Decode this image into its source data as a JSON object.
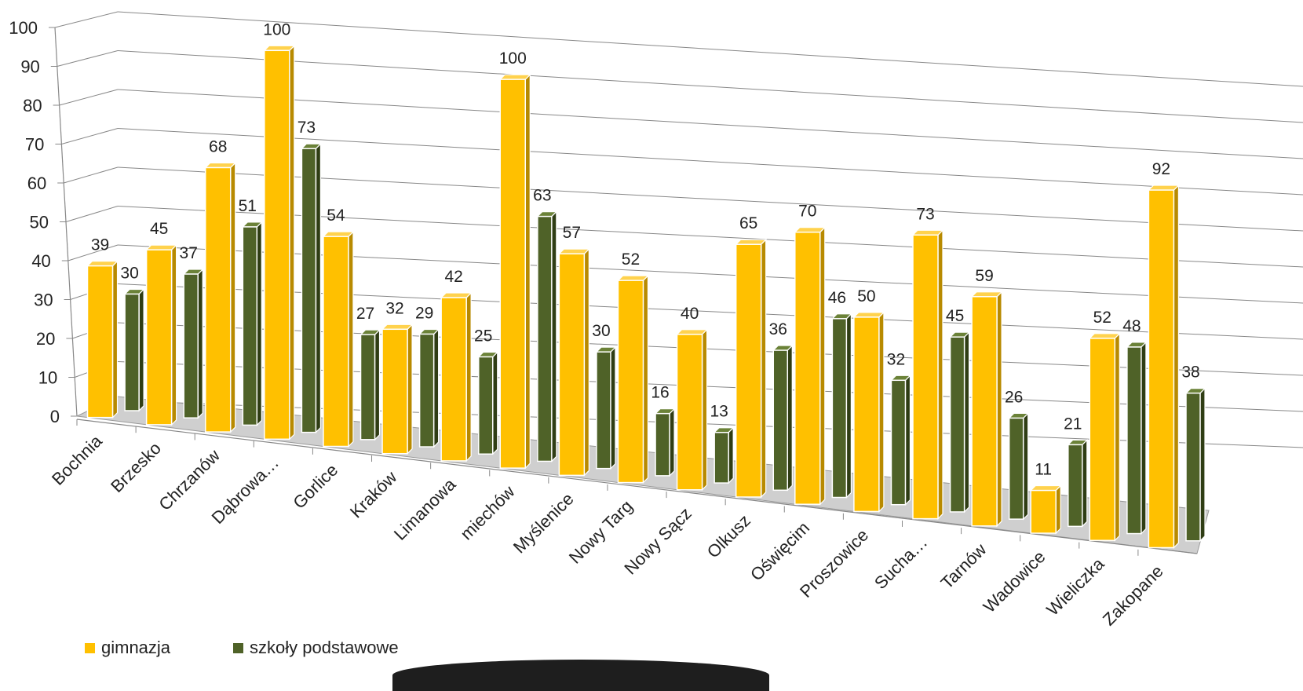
{
  "chart_data": {
    "type": "bar",
    "categories": [
      "Bochnia",
      "Brzesko",
      "Chrzanów",
      "Dąbrowa…",
      "Gorlice",
      "Kraków",
      "Limanowa",
      "miechów",
      "Myślenice",
      "Nowy Targ",
      "Nowy Sącz",
      "Olkusz",
      "Oświęcim",
      "Proszowice",
      "Sucha…",
      "Tarnów",
      "Wadowice",
      "Wieliczka",
      "Zakopane"
    ],
    "series": [
      {
        "name": "gimnazja",
        "color": "#FFC000",
        "values": [
          39,
          45,
          68,
          100,
          54,
          32,
          42,
          100,
          57,
          52,
          40,
          65,
          70,
          50,
          73,
          59,
          11,
          52,
          92
        ]
      },
      {
        "name": "szkoły podstawowe",
        "color": "#4F6228",
        "values": [
          30,
          37,
          51,
          73,
          27,
          29,
          25,
          63,
          30,
          16,
          13,
          36,
          46,
          32,
          45,
          26,
          21,
          48,
          38
        ]
      }
    ],
    "ylim": [
      0,
      100
    ],
    "yticks": [
      0,
      10,
      20,
      30,
      40,
      50,
      60,
      70,
      80,
      90,
      100
    ],
    "grid": true,
    "legend": "bottom-left",
    "style": "3d-clustered-column"
  }
}
